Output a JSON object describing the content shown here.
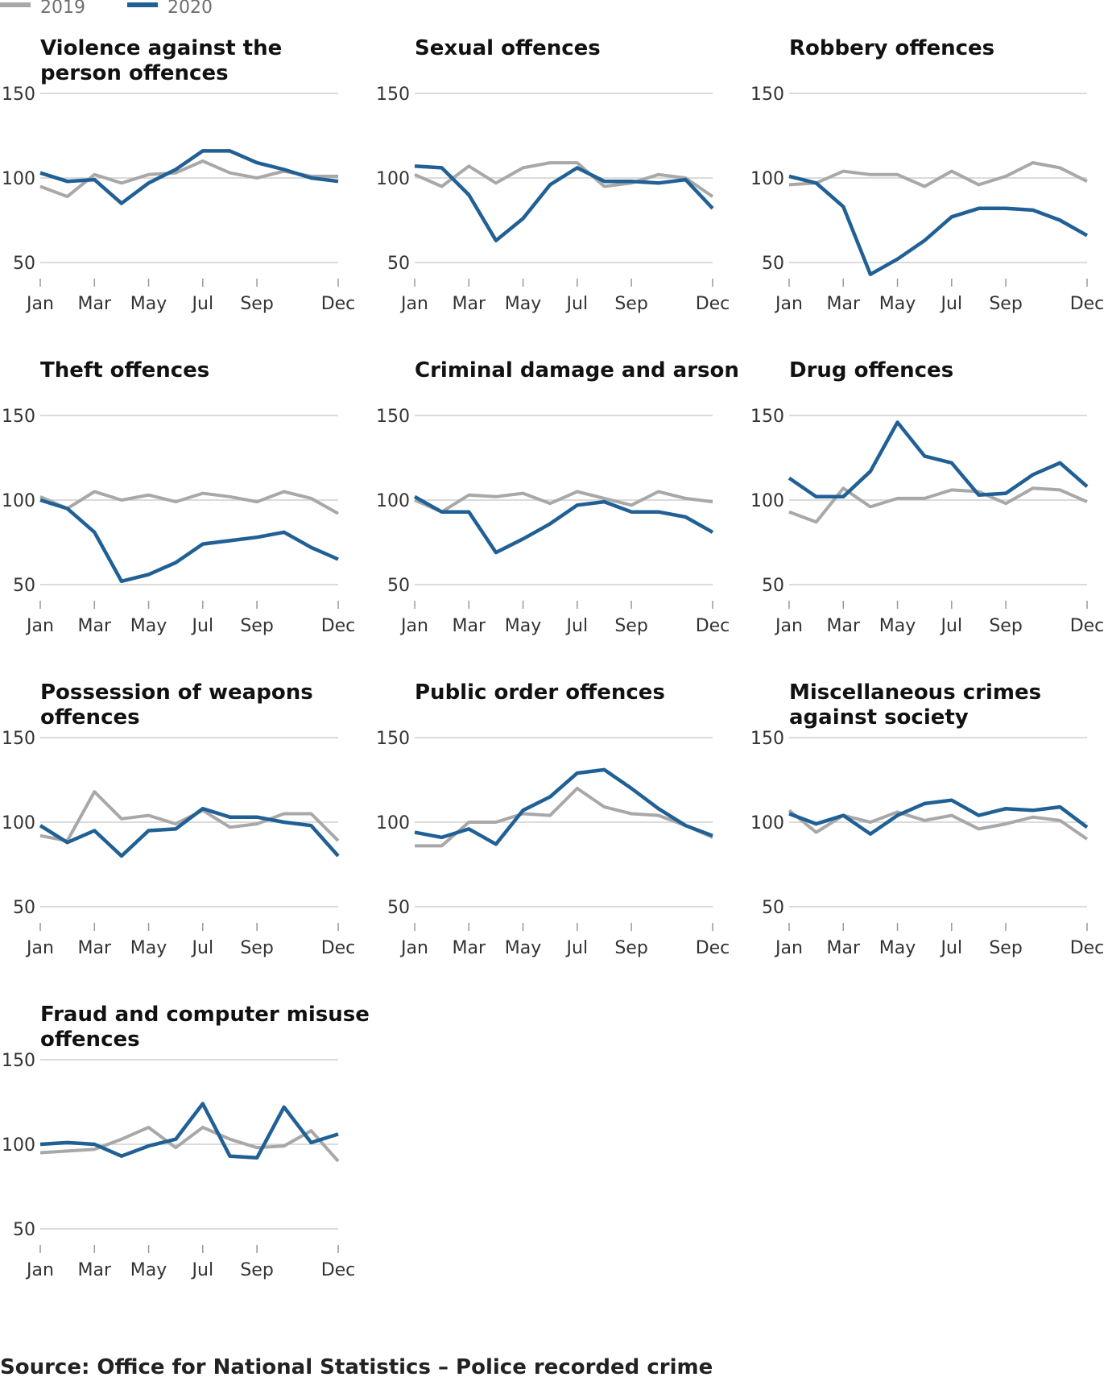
{
  "legend": [
    {
      "label": "2019",
      "color": "#a8a8a8"
    },
    {
      "label": "2020",
      "color": "#206095"
    }
  ],
  "source_text": "Source: Office for National Statistics – Police recorded crime",
  "x_tick_labels": [
    "Jan",
    "Mar",
    "May",
    "Jul",
    "Sep",
    "Dec"
  ],
  "y_tick_labels": [
    "50",
    "100",
    "150"
  ],
  "chart_data": [
    {
      "type": "line",
      "title": "Violence against the person offences",
      "x": [
        "Jan",
        "Feb",
        "Mar",
        "Apr",
        "May",
        "Jun",
        "Jul",
        "Aug",
        "Sep",
        "Oct",
        "Nov",
        "Dec"
      ],
      "ylim": [
        50,
        150
      ],
      "series": [
        {
          "name": "2019",
          "values": [
            95,
            89,
            102,
            97,
            102,
            103,
            110,
            103,
            100,
            104,
            101,
            101
          ]
        },
        {
          "name": "2020",
          "values": [
            103,
            98,
            99,
            85,
            97,
            105,
            116,
            116,
            109,
            105,
            100,
            98
          ]
        }
      ]
    },
    {
      "type": "line",
      "title": "Sexual offences",
      "x": [
        "Jan",
        "Feb",
        "Mar",
        "Apr",
        "May",
        "Jun",
        "Jul",
        "Aug",
        "Sep",
        "Oct",
        "Nov",
        "Dec"
      ],
      "ylim": [
        50,
        150
      ],
      "series": [
        {
          "name": "2019",
          "values": [
            102,
            95,
            107,
            97,
            106,
            109,
            109,
            95,
            97,
            102,
            100,
            89
          ]
        },
        {
          "name": "2020",
          "values": [
            107,
            106,
            90,
            63,
            76,
            96,
            106,
            98,
            98,
            97,
            99,
            82
          ]
        }
      ]
    },
    {
      "type": "line",
      "title": "Robbery offences",
      "x": [
        "Jan",
        "Feb",
        "Mar",
        "Apr",
        "May",
        "Jun",
        "Jul",
        "Aug",
        "Sep",
        "Oct",
        "Nov",
        "Dec"
      ],
      "ylim": [
        50,
        150
      ],
      "series": [
        {
          "name": "2019",
          "values": [
            96,
            97,
            104,
            102,
            102,
            95,
            104,
            96,
            101,
            109,
            106,
            98
          ]
        },
        {
          "name": "2020",
          "values": [
            101,
            97,
            83,
            43,
            52,
            63,
            77,
            82,
            82,
            81,
            75,
            66
          ]
        }
      ]
    },
    {
      "type": "line",
      "title": "Theft offences",
      "x": [
        "Jan",
        "Feb",
        "Mar",
        "Apr",
        "May",
        "Jun",
        "Jul",
        "Aug",
        "Sep",
        "Oct",
        "Nov",
        "Dec"
      ],
      "ylim": [
        50,
        150
      ],
      "series": [
        {
          "name": "2019",
          "values": [
            102,
            95,
            105,
            100,
            103,
            99,
            104,
            102,
            99,
            105,
            101,
            92
          ]
        },
        {
          "name": "2020",
          "values": [
            100,
            95,
            81,
            52,
            56,
            63,
            74,
            76,
            78,
            81,
            72,
            65
          ]
        }
      ]
    },
    {
      "type": "line",
      "title": "Criminal damage and arson",
      "x": [
        "Jan",
        "Feb",
        "Mar",
        "Apr",
        "May",
        "Jun",
        "Jul",
        "Aug",
        "Sep",
        "Oct",
        "Nov",
        "Dec"
      ],
      "ylim": [
        50,
        150
      ],
      "series": [
        {
          "name": "2019",
          "values": [
            100,
            93,
            103,
            102,
            104,
            98,
            105,
            101,
            97,
            105,
            101,
            99
          ]
        },
        {
          "name": "2020",
          "values": [
            102,
            93,
            93,
            69,
            77,
            86,
            97,
            99,
            93,
            93,
            90,
            81
          ]
        }
      ]
    },
    {
      "type": "line",
      "title": "Drug offences",
      "x": [
        "Jan",
        "Feb",
        "Mar",
        "Apr",
        "May",
        "Jun",
        "Jul",
        "Aug",
        "Sep",
        "Oct",
        "Nov",
        "Dec"
      ],
      "ylim": [
        50,
        150
      ],
      "series": [
        {
          "name": "2019",
          "values": [
            93,
            87,
            107,
            96,
            101,
            101,
            106,
            105,
            98,
            107,
            106,
            99
          ]
        },
        {
          "name": "2020",
          "values": [
            113,
            102,
            102,
            117,
            146,
            126,
            122,
            103,
            104,
            115,
            122,
            108
          ]
        }
      ]
    },
    {
      "type": "line",
      "title": "Possession of weapons offences",
      "x": [
        "Jan",
        "Feb",
        "Mar",
        "Apr",
        "May",
        "Jun",
        "Jul",
        "Aug",
        "Sep",
        "Oct",
        "Nov",
        "Dec"
      ],
      "ylim": [
        50,
        150
      ],
      "series": [
        {
          "name": "2019",
          "values": [
            92,
            89,
            118,
            102,
            104,
            99,
            107,
            97,
            99,
            105,
            105,
            89
          ]
        },
        {
          "name": "2020",
          "values": [
            98,
            88,
            95,
            80,
            95,
            96,
            108,
            103,
            103,
            100,
            98,
            80
          ]
        }
      ]
    },
    {
      "type": "line",
      "title": "Public order offences",
      "x": [
        "Jan",
        "Feb",
        "Mar",
        "Apr",
        "May",
        "Jun",
        "Jul",
        "Aug",
        "Sep",
        "Oct",
        "Nov",
        "Dec"
      ],
      "ylim": [
        50,
        150
      ],
      "series": [
        {
          "name": "2019",
          "values": [
            86,
            86,
            100,
            100,
            105,
            104,
            120,
            109,
            105,
            104,
            98,
            91
          ]
        },
        {
          "name": "2020",
          "values": [
            94,
            91,
            96,
            87,
            107,
            115,
            129,
            131,
            120,
            108,
            98,
            92
          ]
        }
      ]
    },
    {
      "type": "line",
      "title": "Miscellaneous crimes against society",
      "x": [
        "Jan",
        "Feb",
        "Mar",
        "Apr",
        "May",
        "Jun",
        "Jul",
        "Aug",
        "Sep",
        "Oct",
        "Nov",
        "Dec"
      ],
      "ylim": [
        50,
        150
      ],
      "series": [
        {
          "name": "2019",
          "values": [
            107,
            94,
            104,
            100,
            106,
            101,
            104,
            96,
            99,
            103,
            101,
            90
          ]
        },
        {
          "name": "2020",
          "values": [
            105,
            99,
            104,
            93,
            104,
            111,
            113,
            104,
            108,
            107,
            109,
            97
          ]
        }
      ]
    },
    {
      "type": "line",
      "title": "Fraud and computer misuse offences",
      "x": [
        "Jan",
        "Feb",
        "Mar",
        "Apr",
        "May",
        "Jun",
        "Jul",
        "Aug",
        "Sep",
        "Oct",
        "Nov",
        "Dec"
      ],
      "ylim": [
        50,
        150
      ],
      "series": [
        {
          "name": "2019",
          "values": [
            95,
            96,
            97,
            103,
            110,
            98,
            110,
            103,
            98,
            99,
            108,
            90
          ]
        },
        {
          "name": "2020",
          "values": [
            100,
            101,
            100,
            93,
            99,
            103,
            124,
            93,
            92,
            122,
            101,
            106
          ]
        }
      ]
    }
  ]
}
